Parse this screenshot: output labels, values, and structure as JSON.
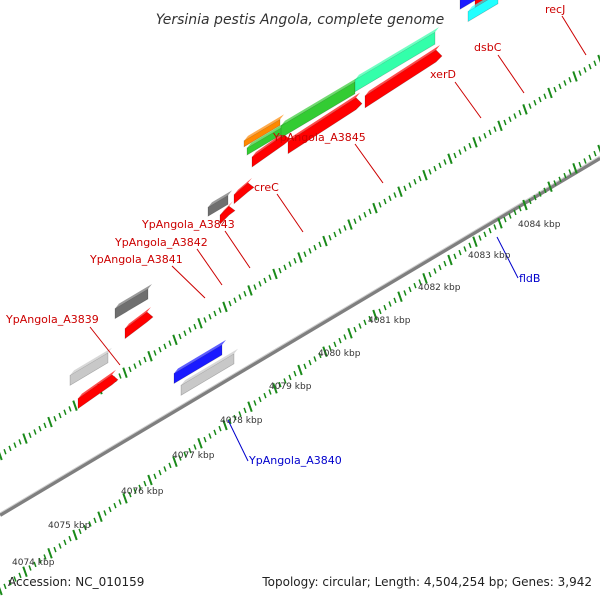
{
  "title": "Yersinia pestis Angola, complete genome",
  "footer": {
    "accession": "Accession: NC_010159",
    "topology": "Topology: circular; Length: 4,504,254 bp; Genes: 3,942"
  },
  "colors": {
    "backbone": "#7f7f7f",
    "tick": "#1a8a1a",
    "label_forward": "#cc0000",
    "label_reverse": "#0000cc",
    "cds_red": "#ff0000",
    "cds_gray": "#6f6f6f",
    "cds_lightgray": "#c8c8c8",
    "cds_orange": "#ff8800",
    "cds_green": "#33cc33",
    "cds_mint": "#33ffaa",
    "cds_khaki": "#c8c08a",
    "cds_magenta": "#ff1aa8",
    "cds_blue": "#1a1aff",
    "cds_cyan": "#22ffff"
  },
  "tick_labels": [
    {
      "text": "4074 kbp"
    },
    {
      "text": "4075 kbp"
    },
    {
      "text": "4076 kbp"
    },
    {
      "text": "4077 kbp"
    },
    {
      "text": "4078 kbp"
    },
    {
      "text": "4079 kbp"
    },
    {
      "text": "4080 kbp"
    },
    {
      "text": "4081 kbp"
    },
    {
      "text": "4082 kbp"
    },
    {
      "text": "4083 kbp"
    },
    {
      "text": "4084 kbp"
    }
  ],
  "gene_labels": [
    {
      "text": "YpAngola_A3839",
      "strand": "forward"
    },
    {
      "text": "YpAngola_A3841",
      "strand": "forward"
    },
    {
      "text": "YpAngola_A3842",
      "strand": "forward"
    },
    {
      "text": "YpAngola_A3843",
      "strand": "forward"
    },
    {
      "text": "creC",
      "strand": "forward"
    },
    {
      "text": "YpAngola_A3845",
      "strand": "forward"
    },
    {
      "text": "xerD",
      "strand": "forward"
    },
    {
      "text": "dsbC",
      "strand": "forward"
    },
    {
      "text": "recJ",
      "strand": "forward"
    },
    {
      "text": "YpAngola_A3840",
      "strand": "reverse"
    },
    {
      "text": "fldB",
      "strand": "reverse"
    }
  ]
}
